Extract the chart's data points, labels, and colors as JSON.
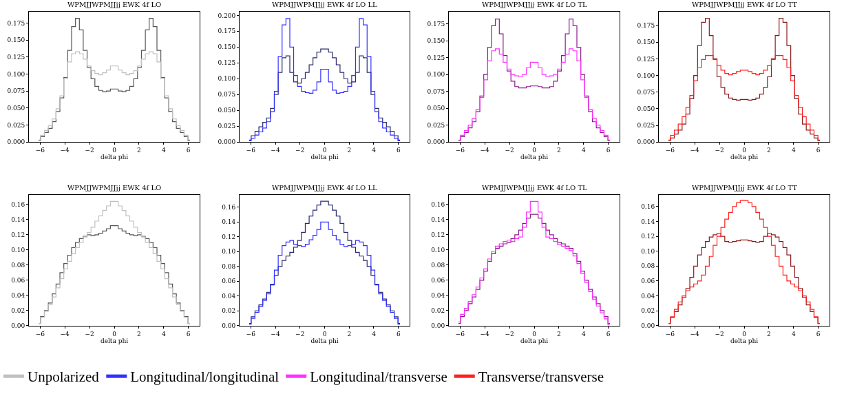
{
  "chart_data": [
    {
      "type": "step",
      "title": "WPMJJWPMJJjj EWK 4f LO",
      "xlabel": "delta phi",
      "legend": "bottom",
      "grid": false,
      "xlim": [
        -6.91,
        6.91
      ],
      "xticks": [
        -6,
        -4,
        -2,
        0,
        2,
        4,
        6
      ],
      "ylim": [
        0,
        0.192
      ],
      "yticks": [
        {
          "value": 0,
          "label": "0.000"
        },
        {
          "value": 0.025,
          "label": "0.025"
        },
        {
          "value": 0.05,
          "label": "0.050"
        },
        {
          "value": 0.075,
          "label": "0.075"
        },
        {
          "value": 0.1,
          "label": "0.100"
        },
        {
          "value": 0.125,
          "label": "0.125"
        },
        {
          "value": 0.15,
          "label": "0.150"
        },
        {
          "value": 0.175,
          "label": "0.175"
        }
      ],
      "x": [
        -6.13,
        -5.81,
        -5.5,
        -5.18,
        -4.87,
        -4.56,
        -4.24,
        -3.93,
        -3.61,
        -3.3,
        -2.98,
        -2.67,
        -2.36,
        -2.04,
        -1.73,
        -1.41,
        -1.1,
        -0.79,
        -0.47,
        -0.16,
        0.16,
        0.47,
        0.79,
        1.1,
        1.41,
        1.73,
        2.04,
        2.36,
        2.67,
        2.98,
        3.3,
        3.61,
        3.93,
        4.24,
        4.56,
        4.87,
        5.18,
        5.5,
        5.81,
        6.13
      ],
      "series": [
        {
          "color": "#555555",
          "values": [
            0.002,
            0.008,
            0.014,
            0.02,
            0.03,
            0.045,
            0.065,
            0.095,
            0.135,
            0.17,
            0.182,
            0.165,
            0.135,
            0.11,
            0.093,
            0.082,
            0.076,
            0.074,
            0.075,
            0.078,
            0.078,
            0.075,
            0.074,
            0.076,
            0.082,
            0.093,
            0.11,
            0.135,
            0.165,
            0.182,
            0.17,
            0.135,
            0.095,
            0.065,
            0.045,
            0.03,
            0.02,
            0.014,
            0.008,
            0.002
          ]
        },
        {
          "name": "Unpolarized",
          "color": "#c0c0c0",
          "values": [
            0.003,
            0.01,
            0.017,
            0.024,
            0.034,
            0.049,
            0.068,
            0.093,
            0.118,
            0.13,
            0.133,
            0.13,
            0.122,
            0.112,
            0.105,
            0.101,
            0.099,
            0.102,
            0.106,
            0.112,
            0.112,
            0.106,
            0.102,
            0.099,
            0.101,
            0.105,
            0.112,
            0.122,
            0.13,
            0.133,
            0.13,
            0.118,
            0.093,
            0.068,
            0.049,
            0.034,
            0.024,
            0.017,
            0.01,
            0.003
          ]
        }
      ]
    },
    {
      "type": "step",
      "title": "WPMJJWPMJJjj EWK 4f LO LL",
      "xlabel": "delta phi",
      "legend": "bottom",
      "grid": false,
      "xlim": [
        -6.91,
        6.91
      ],
      "xticks": [
        -6,
        -4,
        -2,
        0,
        2,
        4,
        6
      ],
      "ylim": [
        0,
        0.206
      ],
      "yticks": [
        {
          "value": 0,
          "label": "0.000"
        },
        {
          "value": 0.025,
          "label": "0.025"
        },
        {
          "value": 0.05,
          "label": "0.050"
        },
        {
          "value": 0.075,
          "label": "0.075"
        },
        {
          "value": 0.1,
          "label": "0.100"
        },
        {
          "value": 0.125,
          "label": "0.125"
        },
        {
          "value": 0.15,
          "label": "0.150"
        },
        {
          "value": 0.175,
          "label": "0.175"
        },
        {
          "value": 0.2,
          "label": "0.200"
        }
      ],
      "x": [
        -6.13,
        -5.81,
        -5.5,
        -5.18,
        -4.87,
        -4.56,
        -4.24,
        -3.93,
        -3.61,
        -3.3,
        -2.98,
        -2.67,
        -2.36,
        -2.04,
        -1.73,
        -1.41,
        -1.1,
        -0.79,
        -0.47,
        -0.16,
        0.16,
        0.47,
        0.79,
        1.1,
        1.41,
        1.73,
        2.04,
        2.36,
        2.67,
        2.98,
        3.3,
        3.61,
        3.93,
        4.24,
        4.56,
        4.87,
        5.18,
        5.5,
        5.81,
        6.13
      ],
      "series": [
        {
          "color": "#2a2a70",
          "values": [
            0.003,
            0.01,
            0.017,
            0.024,
            0.031,
            0.038,
            0.053,
            0.075,
            0.11,
            0.133,
            0.136,
            0.11,
            0.095,
            0.093,
            0.1,
            0.11,
            0.122,
            0.133,
            0.142,
            0.147,
            0.147,
            0.142,
            0.133,
            0.122,
            0.11,
            0.1,
            0.093,
            0.095,
            0.11,
            0.136,
            0.133,
            0.11,
            0.075,
            0.053,
            0.038,
            0.031,
            0.024,
            0.017,
            0.01,
            0.003
          ]
        },
        {
          "name": "Longitudinal/longitudinal",
          "color": "#3030ff",
          "values": [
            0.002,
            0.006,
            0.011,
            0.016,
            0.022,
            0.032,
            0.048,
            0.08,
            0.135,
            0.185,
            0.195,
            0.15,
            0.105,
            0.088,
            0.08,
            0.078,
            0.077,
            0.082,
            0.095,
            0.115,
            0.115,
            0.095,
            0.082,
            0.077,
            0.078,
            0.08,
            0.088,
            0.105,
            0.15,
            0.195,
            0.185,
            0.135,
            0.08,
            0.048,
            0.032,
            0.022,
            0.016,
            0.011,
            0.006,
            0.002
          ]
        }
      ]
    },
    {
      "type": "step",
      "title": "WPMJJWPMJJjj EWK 4f LO TL",
      "xlabel": "delta phi",
      "legend": "bottom",
      "grid": false,
      "xlim": [
        -6.91,
        6.91
      ],
      "xticks": [
        -6,
        -4,
        -2,
        0,
        2,
        4,
        6
      ],
      "ylim": [
        0,
        0.193
      ],
      "yticks": [
        {
          "value": 0,
          "label": "0.000"
        },
        {
          "value": 0.025,
          "label": "0.025"
        },
        {
          "value": 0.05,
          "label": "0.050"
        },
        {
          "value": 0.075,
          "label": "0.075"
        },
        {
          "value": 0.1,
          "label": "0.100"
        },
        {
          "value": 0.125,
          "label": "0.125"
        },
        {
          "value": 0.15,
          "label": "0.150"
        },
        {
          "value": 0.175,
          "label": "0.175"
        }
      ],
      "x": [
        -6.13,
        -5.81,
        -5.5,
        -5.18,
        -4.87,
        -4.56,
        -4.24,
        -3.93,
        -3.61,
        -3.3,
        -2.98,
        -2.67,
        -2.36,
        -2.04,
        -1.73,
        -1.41,
        -1.1,
        -0.79,
        -0.47,
        -0.16,
        0.16,
        0.47,
        0.79,
        1.1,
        1.41,
        1.73,
        2.04,
        2.36,
        2.67,
        2.98,
        3.3,
        3.61,
        3.93,
        4.24,
        4.56,
        4.87,
        5.18,
        5.5,
        5.81,
        6.13
      ],
      "series": [
        {
          "color": "#8b1a8b",
          "values": [
            0.002,
            0.008,
            0.014,
            0.021,
            0.03,
            0.045,
            0.068,
            0.1,
            0.14,
            0.172,
            0.182,
            0.16,
            0.128,
            0.105,
            0.09,
            0.082,
            0.08,
            0.08,
            0.082,
            0.083,
            0.083,
            0.082,
            0.08,
            0.08,
            0.082,
            0.09,
            0.105,
            0.128,
            0.16,
            0.182,
            0.172,
            0.14,
            0.1,
            0.068,
            0.045,
            0.03,
            0.021,
            0.014,
            0.008,
            0.002
          ]
        },
        {
          "name": "Longitudinal/transverse",
          "color": "#ff30ff",
          "values": [
            0.003,
            0.01,
            0.017,
            0.025,
            0.035,
            0.048,
            0.066,
            0.092,
            0.12,
            0.135,
            0.138,
            0.13,
            0.118,
            0.108,
            0.1,
            0.098,
            0.097,
            0.1,
            0.11,
            0.118,
            0.118,
            0.11,
            0.1,
            0.097,
            0.098,
            0.1,
            0.108,
            0.118,
            0.13,
            0.138,
            0.135,
            0.12,
            0.092,
            0.066,
            0.048,
            0.035,
            0.025,
            0.017,
            0.01,
            0.003
          ]
        }
      ]
    },
    {
      "type": "step",
      "title": "WPMJJWPMJJjj EWK 4f LO TT",
      "xlabel": "delta phi",
      "legend": "bottom",
      "grid": false,
      "xlim": [
        -6.91,
        6.91
      ],
      "xticks": [
        -6,
        -4,
        -2,
        0,
        2,
        4,
        6
      ],
      "ylim": [
        0,
        0.196
      ],
      "yticks": [
        {
          "value": 0,
          "label": "0.000"
        },
        {
          "value": 0.025,
          "label": "0.025"
        },
        {
          "value": 0.05,
          "label": "0.050"
        },
        {
          "value": 0.075,
          "label": "0.075"
        },
        {
          "value": 0.1,
          "label": "0.100"
        },
        {
          "value": 0.125,
          "label": "0.125"
        },
        {
          "value": 0.15,
          "label": "0.150"
        },
        {
          "value": 0.175,
          "label": "0.175"
        }
      ],
      "x": [
        -6.13,
        -5.81,
        -5.5,
        -5.18,
        -4.87,
        -4.56,
        -4.24,
        -3.93,
        -3.61,
        -3.3,
        -2.98,
        -2.67,
        -2.36,
        -2.04,
        -1.73,
        -1.41,
        -1.1,
        -0.79,
        -0.47,
        -0.16,
        0.16,
        0.47,
        0.79,
        1.1,
        1.41,
        1.73,
        2.04,
        2.36,
        2.67,
        2.98,
        3.3,
        3.61,
        3.93,
        4.24,
        4.56,
        4.87,
        5.18,
        5.5,
        5.81,
        6.13
      ],
      "series": [
        {
          "color": "#8b1a1a",
          "values": [
            0.002,
            0.006,
            0.012,
            0.018,
            0.027,
            0.042,
            0.065,
            0.1,
            0.145,
            0.18,
            0.186,
            0.16,
            0.125,
            0.098,
            0.082,
            0.072,
            0.066,
            0.064,
            0.063,
            0.064,
            0.064,
            0.063,
            0.064,
            0.066,
            0.072,
            0.082,
            0.098,
            0.125,
            0.16,
            0.186,
            0.18,
            0.145,
            0.1,
            0.065,
            0.042,
            0.027,
            0.018,
            0.012,
            0.006,
            0.002
          ]
        },
        {
          "name": "Transverse/transverse",
          "color": "#ff2020",
          "values": [
            0.003,
            0.01,
            0.018,
            0.027,
            0.038,
            0.052,
            0.07,
            0.092,
            0.112,
            0.124,
            0.13,
            0.13,
            0.124,
            0.115,
            0.108,
            0.103,
            0.101,
            0.103,
            0.106,
            0.108,
            0.108,
            0.106,
            0.103,
            0.101,
            0.103,
            0.108,
            0.115,
            0.124,
            0.13,
            0.13,
            0.124,
            0.112,
            0.092,
            0.07,
            0.052,
            0.038,
            0.027,
            0.018,
            0.01,
            0.003
          ]
        }
      ]
    },
    {
      "type": "step",
      "title": "WPMJJWPMJJjj EWK 4f LO",
      "xlabel": "delta phi",
      "legend": "bottom",
      "grid": false,
      "xlim": [
        -6.91,
        6.91
      ],
      "xticks": [
        -6,
        -4,
        -2,
        0,
        2,
        4,
        6
      ],
      "ylim": [
        0,
        0.173
      ],
      "yticks": [
        {
          "value": 0,
          "label": "0.00"
        },
        {
          "value": 0.02,
          "label": "0.02"
        },
        {
          "value": 0.04,
          "label": "0.04"
        },
        {
          "value": 0.06,
          "label": "0.06"
        },
        {
          "value": 0.08,
          "label": "0.08"
        },
        {
          "value": 0.1,
          "label": "0.10"
        },
        {
          "value": 0.12,
          "label": "0.12"
        },
        {
          "value": 0.14,
          "label": "0.14"
        },
        {
          "value": 0.16,
          "label": "0.16"
        }
      ],
      "x": [
        -6.13,
        -5.81,
        -5.5,
        -5.18,
        -4.87,
        -4.56,
        -4.24,
        -3.93,
        -3.61,
        -3.3,
        -2.98,
        -2.67,
        -2.36,
        -2.04,
        -1.73,
        -1.41,
        -1.1,
        -0.79,
        -0.47,
        -0.16,
        0.16,
        0.47,
        0.79,
        1.1,
        1.41,
        1.73,
        2.04,
        2.36,
        2.67,
        2.98,
        3.3,
        3.61,
        3.93,
        4.24,
        4.56,
        4.87,
        5.18,
        5.5,
        5.81,
        6.13
      ],
      "series": [
        {
          "color": "#555555",
          "values": [
            0.003,
            0.012,
            0.02,
            0.03,
            0.042,
            0.055,
            0.07,
            0.082,
            0.093,
            0.103,
            0.11,
            0.115,
            0.118,
            0.12,
            0.119,
            0.12,
            0.122,
            0.125,
            0.128,
            0.132,
            0.132,
            0.128,
            0.125,
            0.122,
            0.12,
            0.119,
            0.12,
            0.118,
            0.115,
            0.11,
            0.103,
            0.093,
            0.082,
            0.07,
            0.055,
            0.042,
            0.03,
            0.02,
            0.012,
            0.003
          ]
        },
        {
          "name": "Unpolarized",
          "color": "#c0c0c0",
          "values": [
            0.003,
            0.011,
            0.019,
            0.028,
            0.038,
            0.05,
            0.062,
            0.075,
            0.085,
            0.095,
            0.103,
            0.11,
            0.117,
            0.123,
            0.13,
            0.138,
            0.145,
            0.152,
            0.158,
            0.164,
            0.164,
            0.158,
            0.152,
            0.145,
            0.138,
            0.13,
            0.123,
            0.117,
            0.11,
            0.103,
            0.095,
            0.085,
            0.075,
            0.062,
            0.05,
            0.038,
            0.028,
            0.019,
            0.011,
            0.003
          ]
        }
      ]
    },
    {
      "type": "step",
      "title": "WPMJJWPMJJjj EWK 4f LO LL",
      "xlabel": "delta phi",
      "legend": "bottom",
      "grid": false,
      "xlim": [
        -6.91,
        6.91
      ],
      "xticks": [
        -6,
        -4,
        -2,
        0,
        2,
        4,
        6
      ],
      "ylim": [
        0,
        0.177
      ],
      "yticks": [
        {
          "value": 0,
          "label": "0.00"
        },
        {
          "value": 0.02,
          "label": "0.02"
        },
        {
          "value": 0.04,
          "label": "0.04"
        },
        {
          "value": 0.06,
          "label": "0.06"
        },
        {
          "value": 0.08,
          "label": "0.08"
        },
        {
          "value": 0.1,
          "label": "0.10"
        },
        {
          "value": 0.12,
          "label": "0.12"
        },
        {
          "value": 0.14,
          "label": "0.14"
        },
        {
          "value": 0.16,
          "label": "0.16"
        }
      ],
      "x": [
        -6.13,
        -5.81,
        -5.5,
        -5.18,
        -4.87,
        -4.56,
        -4.24,
        -3.93,
        -3.61,
        -3.3,
        -2.98,
        -2.67,
        -2.36,
        -2.04,
        -1.73,
        -1.41,
        -1.1,
        -0.79,
        -0.47,
        -0.16,
        0.16,
        0.47,
        0.79,
        1.1,
        1.41,
        1.73,
        2.04,
        2.36,
        2.67,
        2.98,
        3.3,
        3.61,
        3.93,
        4.24,
        4.56,
        4.87,
        5.18,
        5.5,
        5.81,
        6.13
      ],
      "series": [
        {
          "color": "#2a2a70",
          "values": [
            0.003,
            0.012,
            0.02,
            0.028,
            0.036,
            0.045,
            0.055,
            0.068,
            0.08,
            0.088,
            0.094,
            0.099,
            0.106,
            0.115,
            0.126,
            0.138,
            0.148,
            0.156,
            0.163,
            0.168,
            0.168,
            0.163,
            0.156,
            0.148,
            0.138,
            0.126,
            0.115,
            0.106,
            0.099,
            0.094,
            0.088,
            0.08,
            0.068,
            0.055,
            0.045,
            0.036,
            0.028,
            0.02,
            0.012,
            0.003
          ]
        },
        {
          "name": "Longitudinal/longitudinal",
          "color": "#3030ff",
          "values": [
            0.002,
            0.01,
            0.018,
            0.026,
            0.034,
            0.043,
            0.056,
            0.075,
            0.095,
            0.108,
            0.113,
            0.115,
            0.11,
            0.108,
            0.107,
            0.11,
            0.116,
            0.122,
            0.13,
            0.14,
            0.14,
            0.13,
            0.122,
            0.116,
            0.11,
            0.107,
            0.108,
            0.11,
            0.115,
            0.113,
            0.108,
            0.095,
            0.075,
            0.056,
            0.043,
            0.034,
            0.026,
            0.018,
            0.01,
            0.002
          ]
        }
      ]
    },
    {
      "type": "step",
      "title": "WPMJJWPMJJjj EWK 4f LO TL",
      "xlabel": "delta phi",
      "legend": "bottom",
      "grid": false,
      "xlim": [
        -6.91,
        6.91
      ],
      "xticks": [
        -6,
        -4,
        -2,
        0,
        2,
        4,
        6
      ],
      "ylim": [
        0,
        0.173
      ],
      "yticks": [
        {
          "value": 0,
          "label": "0.00"
        },
        {
          "value": 0.02,
          "label": "0.02"
        },
        {
          "value": 0.04,
          "label": "0.04"
        },
        {
          "value": 0.06,
          "label": "0.06"
        },
        {
          "value": 0.08,
          "label": "0.08"
        },
        {
          "value": 0.1,
          "label": "0.10"
        },
        {
          "value": 0.12,
          "label": "0.12"
        },
        {
          "value": 0.14,
          "label": "0.14"
        },
        {
          "value": 0.16,
          "label": "0.16"
        }
      ],
      "x": [
        -6.13,
        -5.81,
        -5.5,
        -5.18,
        -4.87,
        -4.56,
        -4.24,
        -3.93,
        -3.61,
        -3.3,
        -2.98,
        -2.67,
        -2.36,
        -2.04,
        -1.73,
        -1.41,
        -1.1,
        -0.79,
        -0.47,
        -0.16,
        0.16,
        0.47,
        0.79,
        1.1,
        1.41,
        1.73,
        2.04,
        2.36,
        2.67,
        2.98,
        3.3,
        3.61,
        3.93,
        4.24,
        4.56,
        4.87,
        5.18,
        5.5,
        5.81,
        6.13
      ],
      "series": [
        {
          "color": "#8b1a8b",
          "values": [
            0.003,
            0.012,
            0.02,
            0.029,
            0.038,
            0.048,
            0.06,
            0.072,
            0.085,
            0.095,
            0.102,
            0.105,
            0.108,
            0.11,
            0.115,
            0.12,
            0.126,
            0.135,
            0.142,
            0.147,
            0.147,
            0.142,
            0.135,
            0.126,
            0.12,
            0.115,
            0.11,
            0.108,
            0.105,
            0.102,
            0.095,
            0.085,
            0.072,
            0.06,
            0.048,
            0.038,
            0.029,
            0.02,
            0.012,
            0.003
          ]
        },
        {
          "name": "Longitudinal/transverse",
          "color": "#ff30ff",
          "values": [
            0.005,
            0.015,
            0.023,
            0.032,
            0.041,
            0.051,
            0.063,
            0.075,
            0.088,
            0.098,
            0.105,
            0.108,
            0.111,
            0.113,
            0.111,
            0.115,
            0.117,
            0.13,
            0.15,
            0.164,
            0.164,
            0.15,
            0.13,
            0.117,
            0.115,
            0.111,
            0.107,
            0.105,
            0.102,
            0.099,
            0.092,
            0.082,
            0.069,
            0.057,
            0.045,
            0.035,
            0.026,
            0.017,
            0.009,
            0.001
          ]
        }
      ]
    },
    {
      "type": "step",
      "title": "WPMJJWPMJJjj EWK 4f LO TT",
      "xlabel": "delta phi",
      "legend": "bottom",
      "grid": false,
      "xlim": [
        -6.91,
        6.91
      ],
      "xticks": [
        -6,
        -4,
        -2,
        0,
        2,
        4,
        6
      ],
      "ylim": [
        0,
        0.176
      ],
      "yticks": [
        {
          "value": 0,
          "label": "0.00"
        },
        {
          "value": 0.02,
          "label": "0.02"
        },
        {
          "value": 0.04,
          "label": "0.04"
        },
        {
          "value": 0.06,
          "label": "0.06"
        },
        {
          "value": 0.08,
          "label": "0.08"
        },
        {
          "value": 0.1,
          "label": "0.10"
        },
        {
          "value": 0.12,
          "label": "0.12"
        },
        {
          "value": 0.14,
          "label": "0.14"
        },
        {
          "value": 0.16,
          "label": "0.16"
        }
      ],
      "x": [
        -6.13,
        -5.81,
        -5.5,
        -5.18,
        -4.87,
        -4.56,
        -4.24,
        -3.93,
        -3.61,
        -3.3,
        -2.98,
        -2.67,
        -2.36,
        -2.04,
        -1.73,
        -1.41,
        -1.1,
        -0.79,
        -0.47,
        -0.16,
        0.16,
        0.47,
        0.79,
        1.1,
        1.41,
        1.73,
        2.04,
        2.36,
        2.67,
        2.98,
        3.3,
        3.61,
        3.93,
        4.24,
        4.56,
        4.87,
        5.18,
        5.5,
        5.81,
        6.13
      ],
      "series": [
        {
          "color": "#8b1a1a",
          "values": [
            0.003,
            0.011,
            0.019,
            0.028,
            0.038,
            0.05,
            0.065,
            0.08,
            0.095,
            0.105,
            0.113,
            0.119,
            0.122,
            0.124,
            0.12,
            0.113,
            0.112,
            0.113,
            0.114,
            0.115,
            0.115,
            0.114,
            0.113,
            0.112,
            0.113,
            0.12,
            0.124,
            0.122,
            0.119,
            0.113,
            0.105,
            0.095,
            0.08,
            0.065,
            0.05,
            0.038,
            0.028,
            0.019,
            0.011,
            0.003
          ]
        },
        {
          "name": "Transverse/transverse",
          "color": "#ff2020",
          "values": [
            0.003,
            0.012,
            0.022,
            0.032,
            0.04,
            0.047,
            0.052,
            0.056,
            0.06,
            0.068,
            0.08,
            0.093,
            0.108,
            0.12,
            0.132,
            0.143,
            0.152,
            0.16,
            0.165,
            0.168,
            0.168,
            0.165,
            0.16,
            0.152,
            0.143,
            0.132,
            0.12,
            0.108,
            0.093,
            0.08,
            0.068,
            0.06,
            0.056,
            0.052,
            0.047,
            0.04,
            0.032,
            0.022,
            0.012,
            0.003
          ]
        }
      ]
    }
  ]
}
